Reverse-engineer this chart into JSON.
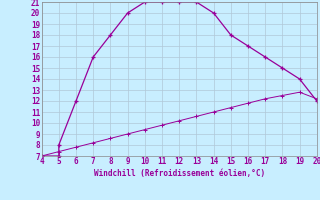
{
  "xlabel": "Windchill (Refroidissement éolien,°C)",
  "line1_x": [
    4,
    5,
    5,
    6,
    7,
    8,
    9,
    10,
    11,
    12,
    13,
    14,
    15,
    16,
    17,
    18,
    19,
    20
  ],
  "line1_y": [
    7,
    7,
    8,
    12,
    16,
    18,
    20,
    21,
    21,
    21,
    21,
    20,
    18,
    17,
    16,
    15,
    14,
    12
  ],
  "line2_x": [
    4,
    5,
    6,
    7,
    8,
    9,
    10,
    11,
    12,
    13,
    14,
    15,
    16,
    17,
    18,
    19,
    20
  ],
  "line2_y": [
    7,
    7.4,
    7.8,
    8.2,
    8.6,
    9.0,
    9.4,
    9.8,
    10.2,
    10.6,
    11.0,
    11.4,
    11.8,
    12.2,
    12.5,
    12.8,
    12.2
  ],
  "line_color": "#990099",
  "bg_color": "#c8eeff",
  "grid_color": "#b0c8d8",
  "xlim": [
    4,
    20
  ],
  "ylim": [
    7,
    21
  ],
  "xticks": [
    4,
    5,
    6,
    7,
    8,
    9,
    10,
    11,
    12,
    13,
    14,
    15,
    16,
    17,
    18,
    19,
    20
  ],
  "yticks": [
    7,
    8,
    9,
    10,
    11,
    12,
    13,
    14,
    15,
    16,
    17,
    18,
    19,
    20,
    21
  ]
}
